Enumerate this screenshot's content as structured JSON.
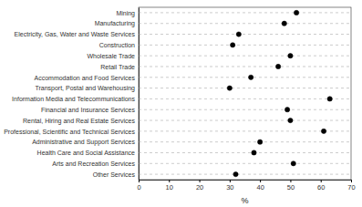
{
  "chart_data": {
    "type": "dot",
    "categories": [
      "Other Services",
      "Arts and Recreation Services",
      "Health Care and Social Assistance",
      "Administrative and Support Services",
      "Professional, Scientific and Technical Services",
      "Rental, Hiring and Real Estate Services",
      "Financial and Insurance Services",
      "Information Media and Telecommunications",
      "Transport, Postal and Warehousing",
      "Accommodation and Food Services",
      "Retail Trade",
      "Wholesale Trade",
      "Construction",
      "Electricity, Gas, Water and Waste Services",
      "Manufacturing",
      "Mining"
    ],
    "values": [
      32,
      51,
      38,
      40,
      61,
      50,
      49,
      63,
      30,
      37,
      46,
      50,
      31,
      33,
      48,
      52
    ],
    "color": "#000000",
    "marker": "circle",
    "orientation": "horizontal",
    "xlim": [
      0,
      70
    ],
    "xticks": [
      0,
      10,
      20,
      30,
      40,
      50,
      60,
      70
    ],
    "xlabel": "%",
    "grid": true
  }
}
